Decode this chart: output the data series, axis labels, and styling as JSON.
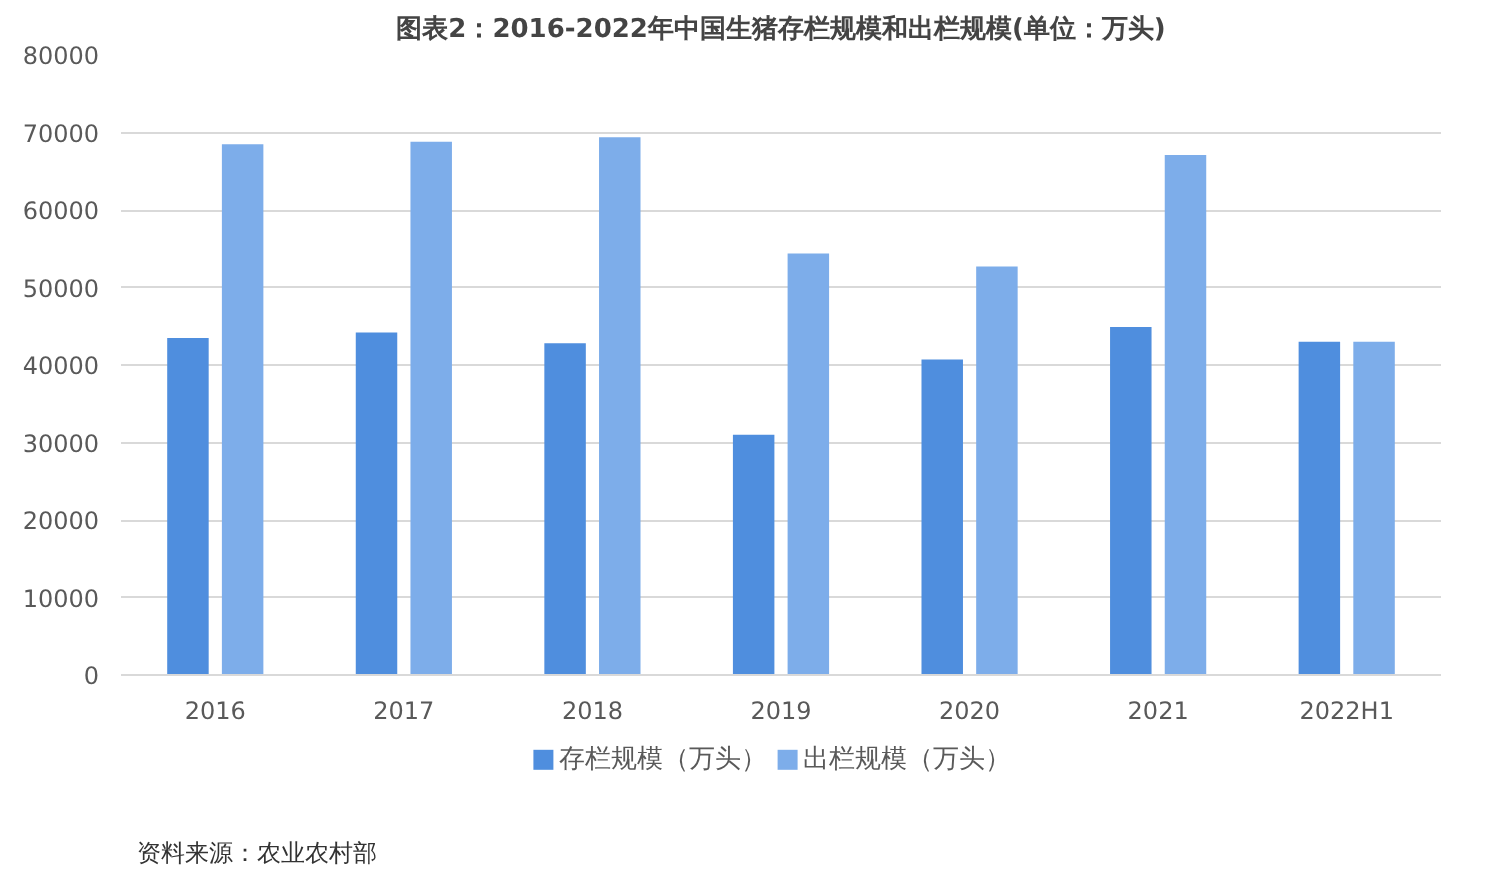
{
  "chart_data": {
    "type": "bar",
    "title": "图表2：2016-2022年中国生猪存栏规模和出栏规模(单位：万头)",
    "categories": [
      "2016",
      "2017",
      "2018",
      "2019",
      "2020",
      "2021",
      "2022H1"
    ],
    "series": [
      {
        "name": "存栏规模（万头）",
        "color": "#4f8ede",
        "values": [
          43500,
          44200,
          42800,
          31000,
          40700,
          44900,
          43000
        ]
      },
      {
        "name": "出栏规模（万头）",
        "color": "#7dadea",
        "values": [
          68500,
          68800,
          69400,
          54400,
          52700,
          67100,
          43000
        ]
      }
    ],
    "ylim": [
      0,
      80000
    ],
    "yticks": [
      0,
      10000,
      20000,
      30000,
      40000,
      50000,
      60000,
      70000,
      80000
    ],
    "grid": "y",
    "legend": "bottom",
    "annotations": [
      "资料来源：农业农村部"
    ]
  }
}
